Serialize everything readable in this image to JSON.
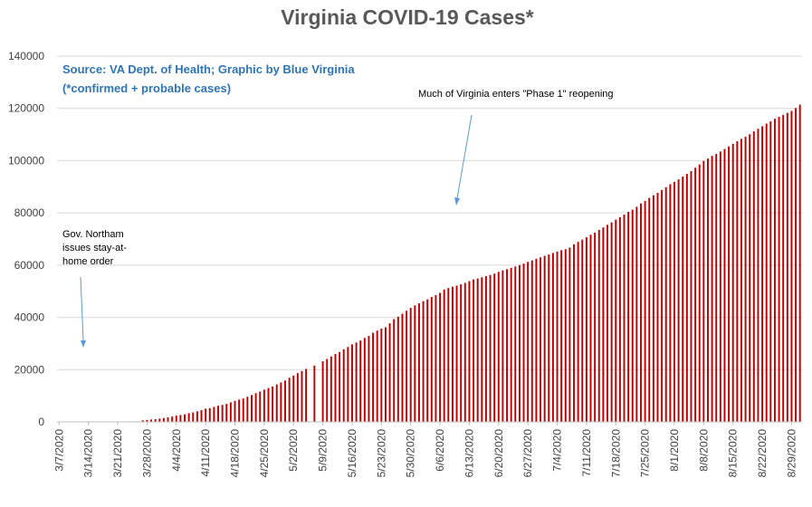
{
  "chart_data": {
    "type": "bar",
    "title": "Virginia COVID-19 Cases*",
    "xlabel": "",
    "ylabel": "",
    "ylim": [
      0,
      140000
    ],
    "yticks": [
      0,
      20000,
      40000,
      60000,
      80000,
      100000,
      120000,
      140000
    ],
    "grid": true,
    "bar_color": "#c00000",
    "x_tick_labels": [
      "3/7/2020",
      "3/14/2020",
      "3/21/2020",
      "3/28/2020",
      "4/4/2020",
      "4/11/2020",
      "4/18/2020",
      "4/25/2020",
      "5/2/2020",
      "5/9/2020",
      "5/16/2020",
      "5/23/2020",
      "5/30/2020",
      "6/6/2020",
      "6/13/2020",
      "6/20/2020",
      "6/27/2020",
      "7/4/2020",
      "7/11/2020",
      "7/18/2020",
      "7/25/2020",
      "8/1/2020",
      "8/8/2020",
      "8/15/2020",
      "8/22/2020",
      "8/29/2020"
    ],
    "categories": [
      "3/7/2020",
      "3/8/2020",
      "3/9/2020",
      "3/10/2020",
      "3/11/2020",
      "3/12/2020",
      "3/13/2020",
      "3/14/2020",
      "3/15/2020",
      "3/16/2020",
      "3/17/2020",
      "3/18/2020",
      "3/19/2020",
      "3/20/2020",
      "3/21/2020",
      "3/22/2020",
      "3/23/2020",
      "3/24/2020",
      "3/25/2020",
      "3/26/2020",
      "3/27/2020",
      "3/28/2020",
      "3/29/2020",
      "3/30/2020",
      "3/31/2020",
      "4/1/2020",
      "4/2/2020",
      "4/3/2020",
      "4/4/2020",
      "4/5/2020",
      "4/6/2020",
      "4/7/2020",
      "4/8/2020",
      "4/9/2020",
      "4/10/2020",
      "4/11/2020",
      "4/12/2020",
      "4/13/2020",
      "4/14/2020",
      "4/15/2020",
      "4/16/2020",
      "4/17/2020",
      "4/18/2020",
      "4/19/2020",
      "4/20/2020",
      "4/21/2020",
      "4/22/2020",
      "4/23/2020",
      "4/24/2020",
      "4/25/2020",
      "4/26/2020",
      "4/27/2020",
      "4/28/2020",
      "4/29/2020",
      "4/30/2020",
      "5/1/2020",
      "5/2/2020",
      "5/3/2020",
      "5/4/2020",
      "5/5/2020",
      "5/6/2020",
      "5/7/2020",
      "5/8/2020",
      "5/9/2020",
      "5/10/2020",
      "5/11/2020",
      "5/12/2020",
      "5/13/2020",
      "5/14/2020",
      "5/15/2020",
      "5/16/2020",
      "5/17/2020",
      "5/18/2020",
      "5/19/2020",
      "5/20/2020",
      "5/21/2020",
      "5/22/2020",
      "5/23/2020",
      "5/24/2020",
      "5/25/2020",
      "5/26/2020",
      "5/27/2020",
      "5/28/2020",
      "5/29/2020",
      "5/30/2020",
      "5/31/2020",
      "6/1/2020",
      "6/2/2020",
      "6/3/2020",
      "6/4/2020",
      "6/5/2020",
      "6/6/2020",
      "6/7/2020",
      "6/8/2020",
      "6/9/2020",
      "6/10/2020",
      "6/11/2020",
      "6/12/2020",
      "6/13/2020",
      "6/14/2020",
      "6/15/2020",
      "6/16/2020",
      "6/17/2020",
      "6/18/2020",
      "6/19/2020",
      "6/20/2020",
      "6/21/2020",
      "6/22/2020",
      "6/23/2020",
      "6/24/2020",
      "6/25/2020",
      "6/26/2020",
      "6/27/2020",
      "6/28/2020",
      "6/29/2020",
      "6/30/2020",
      "7/1/2020",
      "7/2/2020",
      "7/3/2020",
      "7/4/2020",
      "7/5/2020",
      "7/6/2020",
      "7/7/2020",
      "7/8/2020",
      "7/9/2020",
      "7/10/2020",
      "7/11/2020",
      "7/12/2020",
      "7/13/2020",
      "7/14/2020",
      "7/15/2020",
      "7/16/2020",
      "7/17/2020",
      "7/18/2020",
      "7/19/2020",
      "7/20/2020",
      "7/21/2020",
      "7/22/2020",
      "7/23/2020",
      "7/24/2020",
      "7/25/2020",
      "7/26/2020",
      "7/27/2020",
      "7/28/2020",
      "7/29/2020",
      "7/30/2020",
      "7/31/2020",
      "8/1/2020",
      "8/2/2020",
      "8/3/2020",
      "8/4/2020",
      "8/5/2020",
      "8/6/2020",
      "8/7/2020",
      "8/8/2020",
      "8/9/2020",
      "8/10/2020",
      "8/11/2020",
      "8/12/2020",
      "8/13/2020",
      "8/14/2020",
      "8/15/2020",
      "8/16/2020",
      "8/17/2020",
      "8/18/2020",
      "8/19/2020",
      "8/20/2020",
      "8/21/2020",
      "8/22/2020",
      "8/23/2020",
      "8/24/2020",
      "8/25/2020",
      "8/26/2020",
      "8/27/2020",
      "8/28/2020",
      "8/29/2020",
      "8/30/2020",
      "8/31/2020"
    ],
    "values": [
      0,
      0,
      0,
      0,
      0,
      0,
      0,
      0,
      0,
      0,
      0,
      0,
      0,
      0,
      0,
      0,
      0,
      0,
      0,
      0,
      600,
      750,
      900,
      1050,
      1250,
      1480,
      1710,
      2010,
      2410,
      2640,
      2880,
      3330,
      3650,
      4040,
      4510,
      5080,
      5270,
      5750,
      6180,
      6500,
      6890,
      7490,
      8050,
      8540,
      8990,
      9630,
      10270,
      10990,
      11590,
      12370,
      12970,
      13540,
      14340,
      15090,
      15850,
      16900,
      17730,
      18670,
      19490,
      20260,
      0,
      21570,
      0,
      23200,
      24080,
      25070,
      26000,
      26750,
      27810,
      28670,
      29680,
      30390,
      31140,
      32140,
      32910,
      34140,
      34950,
      35750,
      36240,
      37730,
      39340,
      40250,
      41400,
      42530,
      43610,
      44610,
      45400,
      46240,
      46910,
      47860,
      48530,
      49400,
      50680,
      51250,
      51740,
      52180,
      52650,
      53210,
      53870,
      54510,
      54890,
      55330,
      55780,
      56240,
      56750,
      57440,
      57990,
      58460,
      58990,
      59510,
      60020,
      60590,
      61250,
      61830,
      62450,
      62980,
      63550,
      64080,
      64660,
      65210,
      65740,
      66100,
      66740,
      67990,
      68900,
      69780,
      70670,
      71640,
      72440,
      73520,
      74440,
      75430,
      76370,
      77430,
      78380,
      79370,
      80390,
      81240,
      82360,
      83610,
      84560,
      85740,
      86770,
      87690,
      88770,
      89820,
      90980,
      91870,
      92840,
      93900,
      94920,
      96010,
      97300,
      98540,
      99890,
      100770,
      101810,
      102550,
      103510,
      104460,
      105430,
      106440,
      107420,
      108340,
      109130,
      110100,
      111210,
      112200,
      113140,
      114170,
      115080,
      116020,
      116770,
      117520,
      118300,
      119040,
      120130,
      121460
    ]
  },
  "annotations": {
    "source_line1": "Source: VA Dept. of Health; Graphic by Blue Virginia",
    "source_line2": "(*confirmed + probable cases)",
    "stay_home_line1": "Gov. Northam",
    "stay_home_line2": "issues stay-at-",
    "stay_home_line3": "home order",
    "phase1": "Much of Virginia enters \"Phase 1\" reopening",
    "source_color": "#2e75b6",
    "arrow_color": "#5b9bd5"
  }
}
